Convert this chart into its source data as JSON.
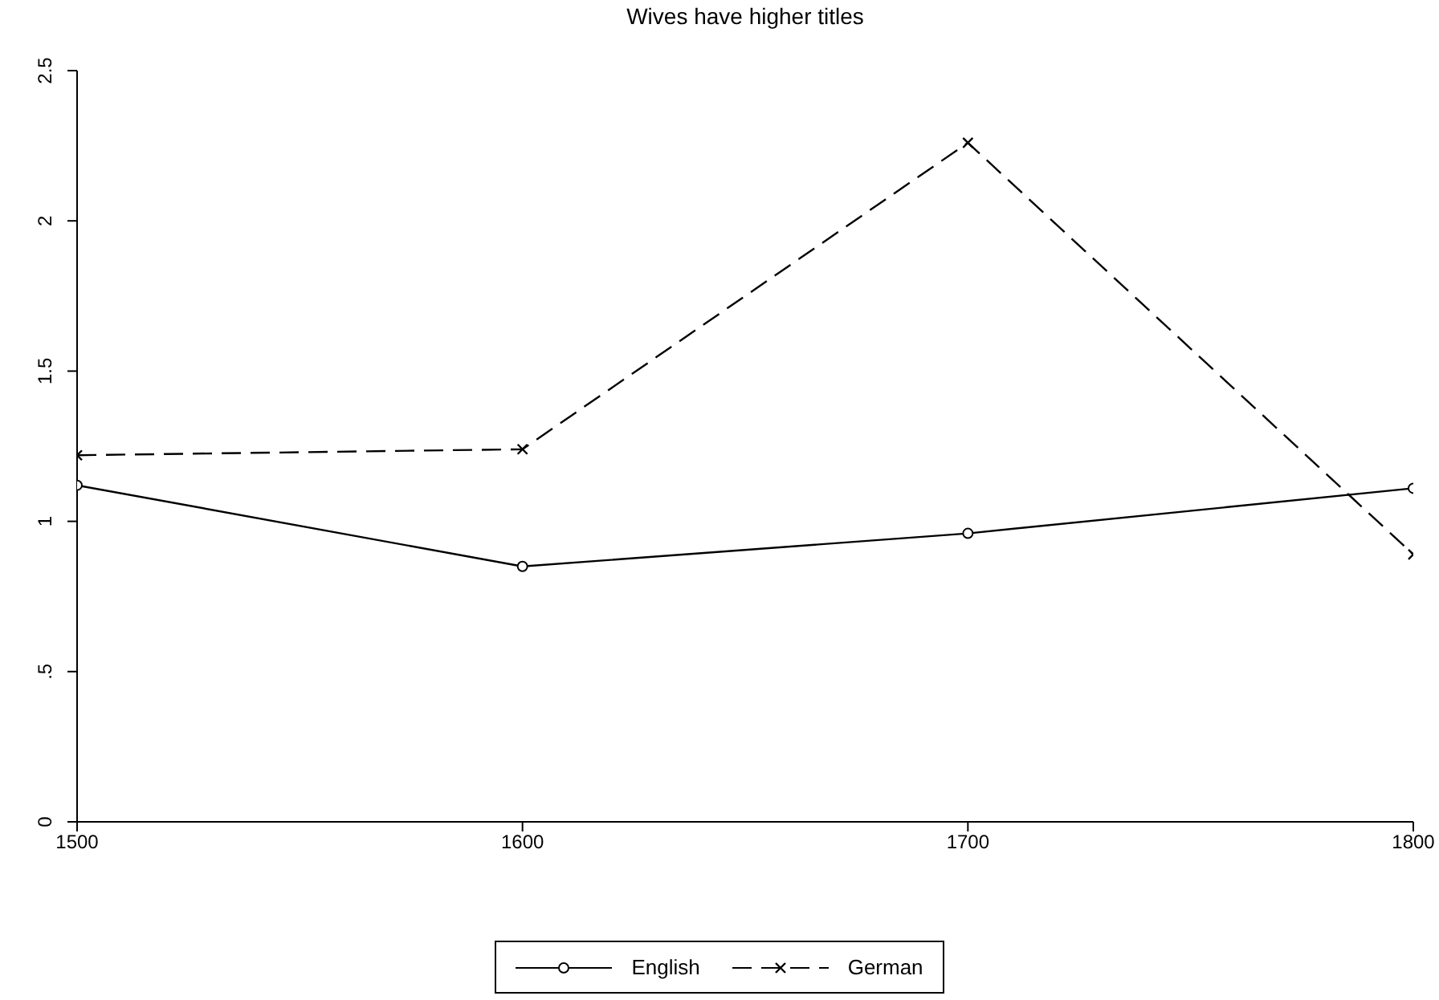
{
  "chart_data": {
    "type": "line",
    "title": "Wives have higher titles",
    "x": [
      1500,
      1600,
      1700,
      1800
    ],
    "xlim": [
      1500,
      1800
    ],
    "xticks": [
      1500,
      1600,
      1700,
      1800
    ],
    "ylim": [
      0,
      2.5
    ],
    "yticks": [
      0,
      {
        "value": 0.5,
        "label": ".5"
      },
      1,
      1.5,
      2,
      2.5
    ],
    "grid": false,
    "legend": "bottom",
    "series": [
      {
        "name": "English",
        "color": "#000000",
        "values": [
          1.12,
          0.85,
          0.96,
          1.11
        ],
        "marker": "circle",
        "line_style": "solid"
      },
      {
        "name": "German",
        "color": "#000000",
        "values": [
          1.22,
          1.24,
          2.26,
          0.89
        ],
        "marker": "cross",
        "line_style": "dashed"
      }
    ]
  }
}
